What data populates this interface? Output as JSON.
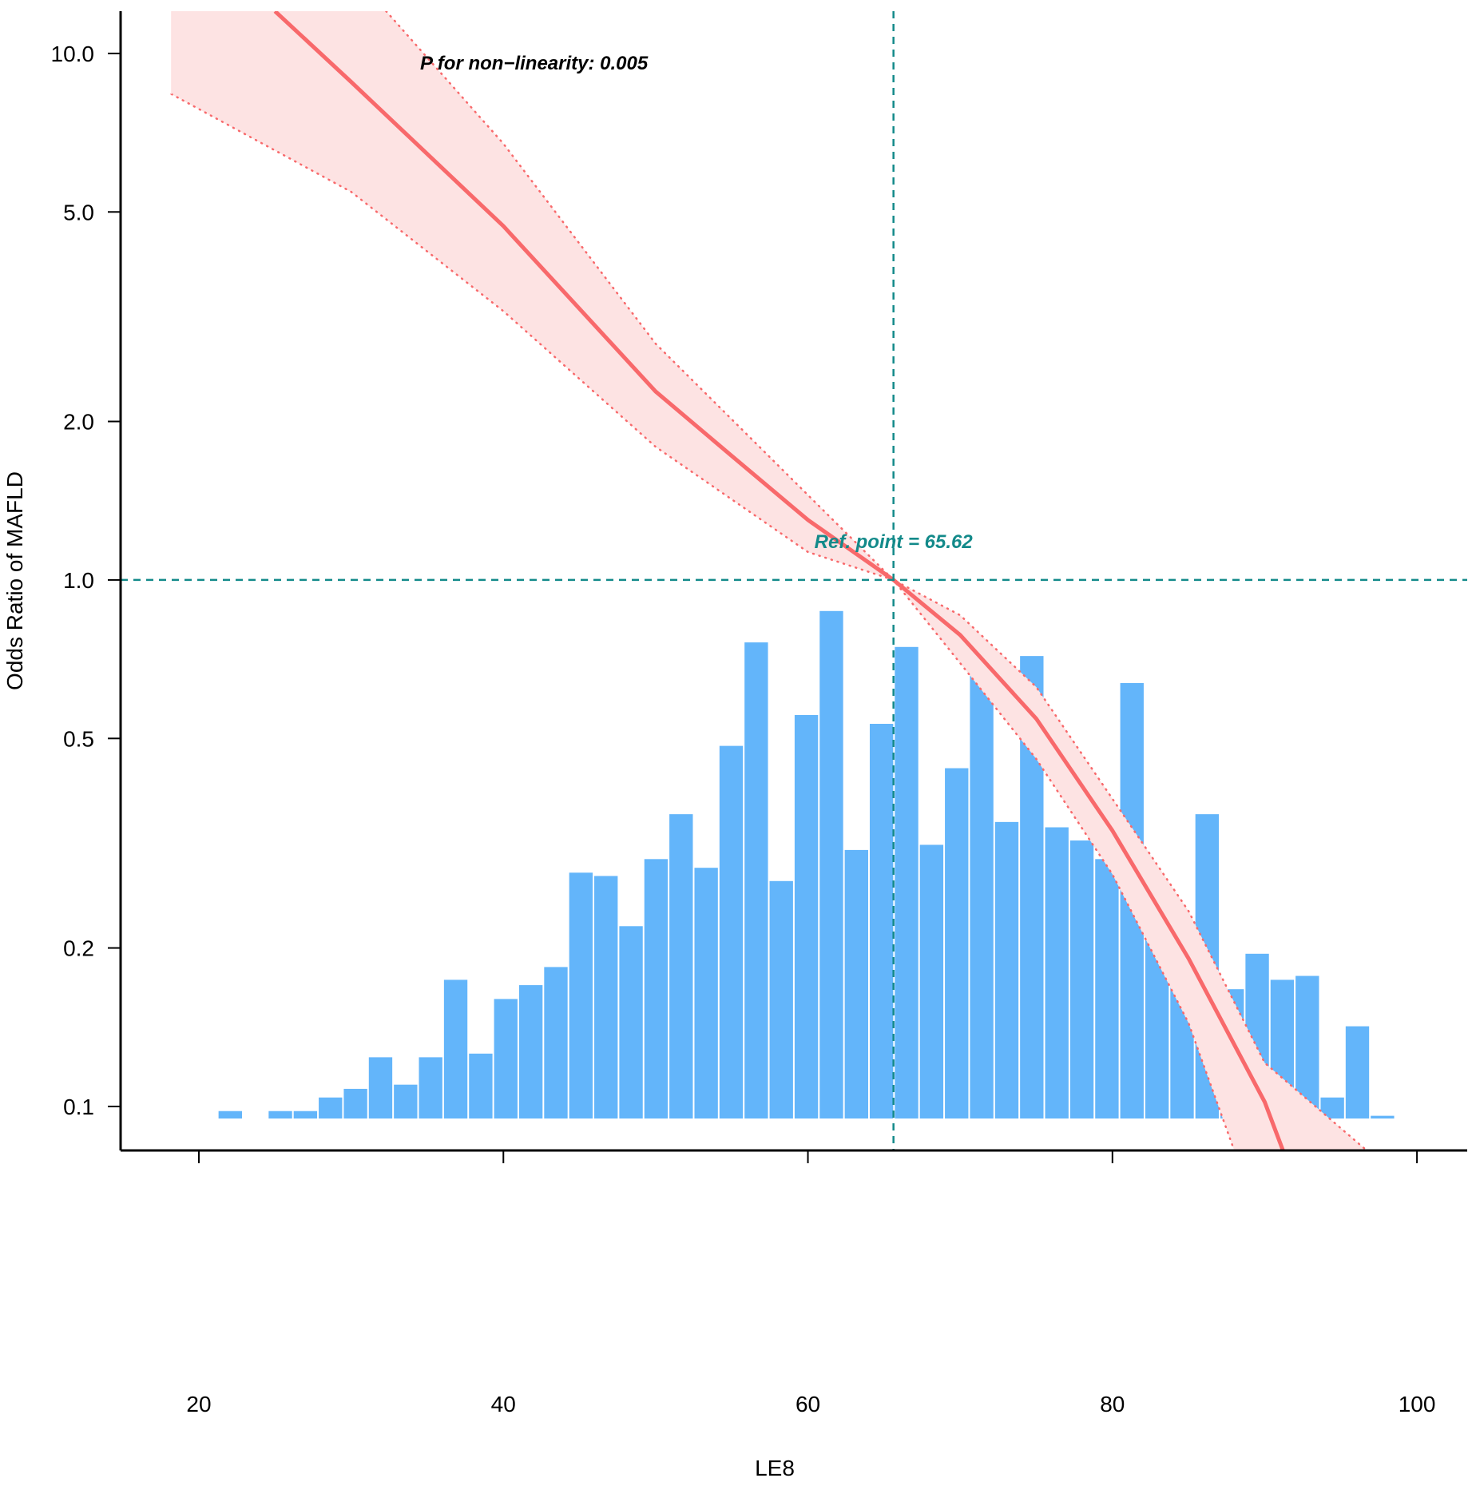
{
  "chart_data": {
    "type": "rcs",
    "x_label": "LE8",
    "y_label": "Odds Ratio of MAFLD",
    "log_y": true,
    "xlim": [
      14.86,
      103.3
    ],
    "ylim": [
      0.0825,
      12.03
    ],
    "xticks": [
      20,
      40,
      60,
      80,
      100
    ],
    "yticks": [
      {
        "value": 10,
        "label": "10.0"
      },
      {
        "value": 5,
        "label": "5.0"
      },
      {
        "value": 2,
        "label": "2.0"
      },
      {
        "value": 1,
        "label": "1.0"
      },
      0.5,
      0.2,
      0.1
    ],
    "annotations": [
      "P for non−linearity: 0.005",
      "Ref. point = 65.62"
    ],
    "ref_x": 65.62,
    "ref_y": 1,
    "ref_color": "#138a8a",
    "histogram": {
      "color": "#63b5fa",
      "bins": [
        21.24,
        22.885,
        24.53,
        26.175,
        27.82,
        29.465,
        31.11,
        32.755,
        34.4,
        36.045,
        37.69,
        39.335,
        40.98,
        42.625,
        44.27,
        45.915,
        47.56,
        49.205,
        50.85,
        52.495,
        54.14,
        55.785,
        57.43,
        59.075,
        60.72,
        62.365,
        64.01,
        65.655,
        67.3,
        68.945,
        70.59,
        72.235,
        73.88,
        75.525,
        77.17,
        78.815,
        80.46,
        82.105,
        83.75,
        85.395,
        87.04,
        88.685,
        90.33,
        91.975,
        93.62,
        95.265,
        96.91,
        98.555
      ],
      "values": [
        0.098,
        null,
        0.098,
        0.098,
        0.104,
        0.108,
        0.124,
        0.11,
        0.124,
        0.174,
        0.126,
        0.16,
        0.17,
        0.184,
        0.278,
        0.274,
        0.22,
        0.295,
        0.359,
        0.284,
        0.484,
        0.761,
        0.268,
        0.554,
        0.873,
        0.307,
        0.533,
        0.746,
        0.314,
        0.439,
        0.746,
        0.347,
        0.717,
        0.339,
        0.32,
        0.295,
        0.637,
        0.242,
        0.199,
        0.359,
        0.167,
        0.195,
        0.174,
        0.177,
        0.104,
        0.142,
        0.096
      ]
    },
    "curve": {
      "color": "#f8696b",
      "x": [
        25.0,
        30,
        40,
        50,
        55,
        60,
        65.62,
        70,
        75,
        80,
        85,
        90,
        91.2
      ],
      "values": [
        12.03,
        8.83,
        4.7,
        2.28,
        1.72,
        1.3,
        1.0,
        0.786,
        0.545,
        0.334,
        0.191,
        0.102,
        0.0825
      ]
    },
    "ci_lower": {
      "color": "#f8696b",
      "x": [
        18.2,
        30,
        40,
        50,
        60,
        65.62,
        70,
        75,
        80,
        85,
        88
      ],
      "values": [
        8.37,
        5.46,
        3.24,
        1.79,
        1.13,
        1.0,
        0.695,
        0.457,
        0.276,
        0.144,
        0.0825
      ]
    },
    "ci_upper": {
      "color": "#f8696b",
      "x": [
        32.3,
        40,
        50,
        60,
        65.62,
        70,
        75,
        80,
        85,
        90,
        96.7
      ],
      "values": [
        12.03,
        6.74,
        2.81,
        1.45,
        1.0,
        0.857,
        0.626,
        0.384,
        0.235,
        0.121,
        0.0825
      ]
    },
    "band_color": "#fde3e3"
  }
}
